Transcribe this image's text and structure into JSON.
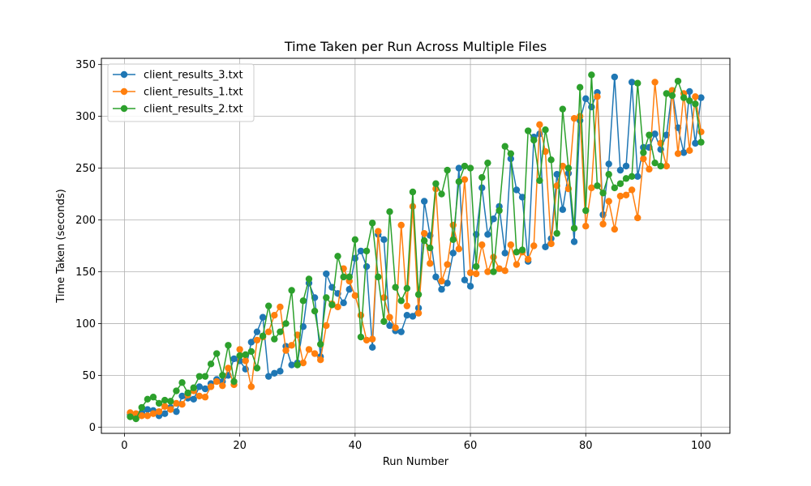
{
  "chart_data": {
    "type": "line",
    "title": "Time Taken per Run Across Multiple Files",
    "xlabel": "Run Number",
    "ylabel": "Time Taken (seconds)",
    "xlim": [
      -4,
      105
    ],
    "ylim": [
      -6,
      356
    ],
    "xticks": [
      0,
      20,
      40,
      60,
      80,
      100
    ],
    "yticks": [
      0,
      50,
      100,
      150,
      200,
      250,
      300,
      350
    ],
    "grid": true,
    "legend_position": "top-left",
    "marker": "circle",
    "series": [
      {
        "name": "client_results_3.txt",
        "color": "#1f77b4",
        "x": [
          1,
          2,
          3,
          4,
          5,
          6,
          7,
          8,
          9,
          10,
          11,
          12,
          13,
          14,
          15,
          16,
          17,
          18,
          19,
          20,
          21,
          22,
          23,
          24,
          25,
          26,
          27,
          28,
          29,
          30,
          31,
          32,
          33,
          34,
          35,
          36,
          37,
          38,
          39,
          40,
          41,
          42,
          43,
          44,
          45,
          46,
          47,
          48,
          49,
          50,
          51,
          52,
          53,
          54,
          55,
          56,
          57,
          58,
          59,
          60,
          61,
          62,
          63,
          64,
          65,
          66,
          67,
          68,
          69,
          70,
          71,
          72,
          73,
          74,
          75,
          76,
          77,
          78,
          79,
          80,
          81,
          82,
          83,
          84,
          85,
          86,
          87,
          88,
          89,
          90,
          91,
          92,
          93,
          94,
          95,
          96,
          97,
          98,
          99,
          100
        ],
        "y": [
          12,
          10,
          14,
          17,
          16,
          11,
          13,
          19,
          15,
          30,
          28,
          27,
          39,
          37,
          42,
          46,
          44,
          50,
          66,
          64,
          56,
          82,
          92,
          106,
          49,
          52,
          54,
          78,
          60,
          62,
          97,
          139,
          125,
          68,
          148,
          135,
          129,
          120,
          133,
          163,
          170,
          155,
          77,
          186,
          181,
          98,
          93,
          92,
          108,
          107,
          115,
          218,
          185,
          145,
          133,
          139,
          168,
          250,
          142,
          136,
          186,
          231,
          186,
          201,
          213,
          168,
          259,
          229,
          222,
          160,
          280,
          283,
          174,
          182,
          244,
          210,
          245,
          179,
          296,
          317,
          309,
          323,
          205,
          254,
          338,
          248,
          252,
          333,
          242,
          270,
          270,
          283,
          268,
          282,
          325,
          289,
          265,
          324,
          274,
          318
        ]
      },
      {
        "name": "client_results_1.txt",
        "color": "#ff7f0e",
        "x": [
          1,
          2,
          3,
          4,
          5,
          6,
          7,
          8,
          9,
          10,
          11,
          12,
          13,
          14,
          15,
          16,
          17,
          18,
          19,
          20,
          21,
          22,
          23,
          24,
          25,
          26,
          27,
          28,
          29,
          30,
          31,
          32,
          33,
          34,
          35,
          36,
          37,
          38,
          39,
          40,
          41,
          42,
          43,
          44,
          45,
          46,
          47,
          48,
          49,
          50,
          51,
          52,
          53,
          54,
          55,
          56,
          57,
          58,
          59,
          60,
          61,
          62,
          63,
          64,
          65,
          66,
          67,
          68,
          69,
          70,
          71,
          72,
          73,
          74,
          75,
          76,
          77,
          78,
          79,
          80,
          81,
          82,
          83,
          84,
          85,
          86,
          87,
          88,
          89,
          90,
          91,
          92,
          93,
          94,
          95,
          96,
          97,
          98,
          99,
          100
        ],
        "y": [
          14,
          13,
          11,
          11,
          13,
          15,
          20,
          17,
          23,
          22,
          31,
          35,
          30,
          29,
          39,
          44,
          40,
          57,
          41,
          75,
          64,
          39,
          84,
          87,
          92,
          108,
          116,
          74,
          79,
          89,
          62,
          75,
          71,
          65,
          98,
          119,
          116,
          153,
          141,
          127,
          108,
          84,
          85,
          189,
          125,
          106,
          96,
          195,
          117,
          213,
          110,
          187,
          158,
          230,
          141,
          157,
          195,
          172,
          239,
          149,
          148,
          176,
          150,
          164,
          153,
          151,
          176,
          157,
          169,
          162,
          175,
          292,
          266,
          177,
          233,
          252,
          230,
          298,
          300,
          194,
          231,
          319,
          196,
          218,
          191,
          223,
          224,
          229,
          202,
          259,
          249,
          333,
          274,
          252,
          325,
          264,
          322,
          267,
          319,
          285
        ]
      },
      {
        "name": "client_results_2.txt",
        "color": "#2ca02c",
        "x": [
          1,
          2,
          3,
          4,
          5,
          6,
          7,
          8,
          9,
          10,
          11,
          12,
          13,
          14,
          15,
          16,
          17,
          18,
          19,
          20,
          21,
          22,
          23,
          24,
          25,
          26,
          27,
          28,
          29,
          30,
          31,
          32,
          33,
          34,
          35,
          36,
          37,
          38,
          39,
          40,
          41,
          42,
          43,
          44,
          45,
          46,
          47,
          48,
          49,
          50,
          51,
          52,
          53,
          54,
          55,
          56,
          57,
          58,
          59,
          60,
          61,
          62,
          63,
          64,
          65,
          66,
          67,
          68,
          69,
          70,
          71,
          72,
          73,
          74,
          75,
          76,
          77,
          78,
          79,
          80,
          81,
          82,
          83,
          84,
          85,
          86,
          87,
          88,
          89,
          90,
          91,
          92,
          93,
          94,
          95,
          96,
          97,
          98,
          99,
          100
        ],
        "y": [
          10,
          8,
          19,
          27,
          29,
          23,
          26,
          25,
          35,
          43,
          33,
          38,
          49,
          49,
          61,
          71,
          50,
          79,
          44,
          69,
          70,
          73,
          57,
          88,
          117,
          85,
          92,
          100,
          132,
          60,
          122,
          143,
          112,
          80,
          125,
          118,
          165,
          145,
          145,
          181,
          87,
          170,
          197,
          145,
          102,
          208,
          135,
          122,
          134,
          227,
          128,
          180,
          173,
          235,
          225,
          248,
          181,
          237,
          252,
          250,
          155,
          241,
          255,
          150,
          209,
          271,
          264,
          169,
          171,
          286,
          277,
          238,
          287,
          258,
          187,
          307,
          250,
          192,
          328,
          209,
          340,
          233,
          226,
          244,
          231,
          235,
          240,
          242,
          332,
          265,
          282,
          255,
          252,
          322,
          320,
          334,
          318,
          315,
          312,
          275
        ]
      }
    ]
  }
}
